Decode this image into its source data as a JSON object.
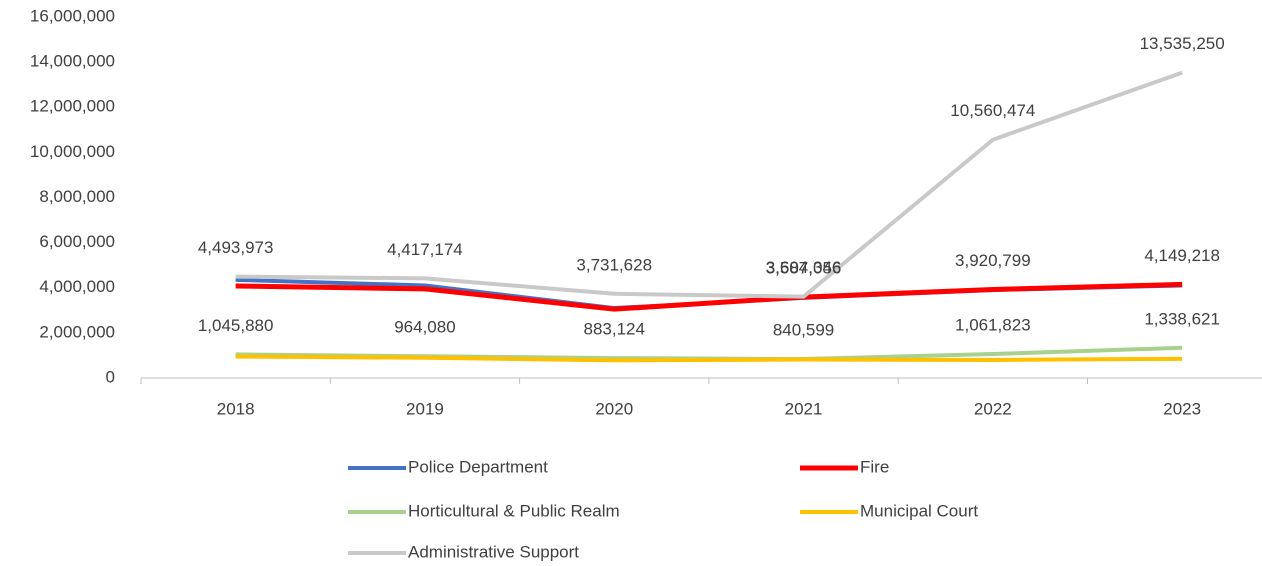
{
  "chart_data": {
    "type": "line",
    "categories": [
      "2018",
      "2019",
      "2020",
      "2021",
      "2022",
      "2023"
    ],
    "series": [
      {
        "name": "Police Department",
        "color": "#4472c4",
        "values": [
          4350000,
          4100000,
          3100000,
          3550000,
          3900000,
          4100000
        ]
      },
      {
        "name": "Fire",
        "color": "#ff0000",
        "values": [
          4080000,
          3950000,
          3050000,
          3587056,
          3920799,
          4149218
        ],
        "value_labels": [
          null,
          null,
          null,
          "3,587,056",
          "3,920,799",
          "4,149,218"
        ]
      },
      {
        "name": "Horticultural & Public Realm",
        "color": "#a9d18e",
        "values": [
          1045880,
          964080,
          883124,
          840599,
          1061823,
          1338621
        ],
        "value_labels": [
          "1,045,880",
          "964,080",
          "883,124",
          "840,599",
          "1,061,823",
          "1,338,621"
        ]
      },
      {
        "name": "Municipal Court",
        "color": "#ffc000",
        "values": [
          950000,
          900000,
          780000,
          820000,
          800000,
          850000
        ]
      },
      {
        "name": "Administrative Support",
        "color": "#c9c9c9",
        "values": [
          4493973,
          4417174,
          3731628,
          3604346,
          10560474,
          13535250
        ],
        "value_labels": [
          "4,493,973",
          "4,417,174",
          "3,731,628",
          "3,604,346",
          "10,560,474",
          "13,535,250"
        ]
      }
    ],
    "ylim": [
      0,
      16000000
    ],
    "yticks": [
      {
        "value": 0,
        "label": "0"
      },
      {
        "value": 2000000,
        "label": "2,000,000"
      },
      {
        "value": 4000000,
        "label": "4,000,000"
      },
      {
        "value": 6000000,
        "label": "6,000,000"
      },
      {
        "value": 8000000,
        "label": "8,000,000"
      },
      {
        "value": 10000000,
        "label": "10,000,000"
      },
      {
        "value": 12000000,
        "label": "12,000,000"
      },
      {
        "value": 14000000,
        "label": "14,000,000"
      },
      {
        "value": 16000000,
        "label": "16,000,000"
      }
    ],
    "grid": false,
    "legend": "bottom"
  }
}
